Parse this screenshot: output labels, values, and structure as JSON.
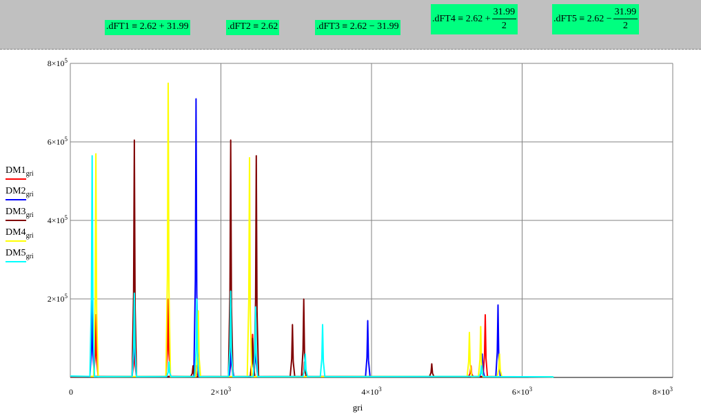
{
  "formulas": {
    "f1": ".dFT1 ≡ 2.62 + 31.99",
    "f2": ".dFT2 ≡ 2.62",
    "f3": ".dFT3 ≡ 2.62 − 31.99",
    "f4": {
      "lhs": ".dFT4 ≡ 2.62 +",
      "num": "31.99",
      "den": "2"
    },
    "f5": {
      "lhs": ".dFT5 ≡ 2.62 −",
      "num": "31.99",
      "den": "2"
    }
  },
  "colors": {
    "formula_bg": "#00ff80",
    "toolbar_bg": "#c0c0c0",
    "DM1": "#ff0000",
    "DM2": "#0000ff",
    "DM3": "#800000",
    "DM4": "#ffff00",
    "DM5": "#00ffff"
  },
  "chart_data": {
    "type": "line",
    "xlabel": "gri",
    "xlim": [
      0,
      8000
    ],
    "ylim": [
      0,
      800000
    ],
    "x_ticks": [
      {
        "base": "0",
        "exp": ""
      },
      {
        "base": "2×10",
        "exp": "3"
      },
      {
        "base": "4×10",
        "exp": "3"
      },
      {
        "base": "6×10",
        "exp": "3"
      },
      {
        "base": "8×10",
        "exp": "3"
      }
    ],
    "y_ticks": [
      {
        "base": "2×10",
        "exp": "5"
      },
      {
        "base": "4×10",
        "exp": "5"
      },
      {
        "base": "6×10",
        "exp": "5"
      },
      {
        "base": "8×10",
        "exp": "5"
      }
    ],
    "grid": true,
    "legend_position": "left",
    "series": [
      {
        "name": "DM1",
        "sub": "gri",
        "color_key": "DM1",
        "peaks": [
          [
            340,
            160000
          ],
          [
            850,
            100000
          ],
          [
            1300,
            200000
          ],
          [
            1670,
            30000
          ],
          [
            2130,
            130000
          ],
          [
            2420,
            110000
          ],
          [
            2460,
            140000
          ],
          [
            3110,
            40000
          ],
          [
            5320,
            30000
          ],
          [
            5510,
            160000
          ]
        ]
      },
      {
        "name": "DM2",
        "sub": "gri",
        "color_key": "DM2",
        "peaks": [
          [
            290,
            195000
          ],
          [
            850,
            180000
          ],
          [
            1670,
            710000
          ],
          [
            2140,
            100000
          ],
          [
            2460,
            120000
          ],
          [
            3950,
            145000
          ],
          [
            5680,
            185000
          ],
          [
            5470,
            60000
          ]
        ]
      },
      {
        "name": "DM3",
        "sub": "gri",
        "color_key": "DM3",
        "peaks": [
          [
            850,
            605000
          ],
          [
            2130,
            605000
          ],
          [
            2470,
            565000
          ],
          [
            2420,
            100000
          ],
          [
            2950,
            135000
          ],
          [
            3100,
            200000
          ],
          [
            4800,
            35000
          ],
          [
            1630,
            30000
          ]
        ]
      },
      {
        "name": "DM4",
        "sub": "gri",
        "color_key": "DM4",
        "peaks": [
          [
            340,
            570000
          ],
          [
            1300,
            750000
          ],
          [
            1700,
            170000
          ],
          [
            2380,
            560000
          ],
          [
            5300,
            115000
          ],
          [
            5450,
            130000
          ],
          [
            5700,
            60000
          ]
        ]
      },
      {
        "name": "DM5",
        "sub": "gri",
        "color_key": "DM5",
        "peaks": [
          [
            290,
            565000
          ],
          [
            850,
            215000
          ],
          [
            1310,
            40000
          ],
          [
            1680,
            200000
          ],
          [
            2130,
            220000
          ],
          [
            2460,
            180000
          ],
          [
            3350,
            135000
          ],
          [
            3120,
            60000
          ],
          [
            5460,
            30000
          ]
        ]
      }
    ]
  }
}
